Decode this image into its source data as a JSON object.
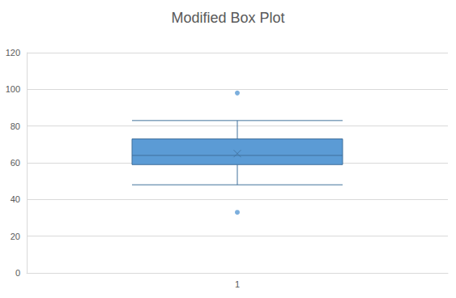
{
  "chart_data": {
    "type": "boxplot",
    "title": "Modified Box Plot",
    "categories": [
      "1"
    ],
    "values": [
      [
        48,
        59,
        64,
        73,
        83
      ]
    ],
    "means": [
      65
    ],
    "outliers": [
      [
        33,
        98
      ]
    ],
    "color": "#5b9bd5",
    "ylim": [
      0,
      120
    ],
    "yticks": [
      0,
      20,
      40,
      60,
      80,
      100,
      120
    ],
    "grid": true
  }
}
